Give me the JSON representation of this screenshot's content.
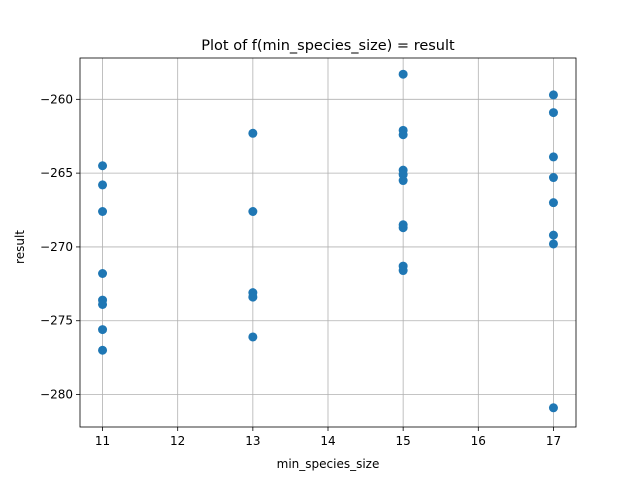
{
  "chart_data": {
    "type": "scatter",
    "title": "Plot of f(min_species_size) = result",
    "xlabel": "min_species_size",
    "ylabel": "result",
    "xlim": [
      10.7,
      17.3
    ],
    "ylim": [
      -282.2,
      -257.2
    ],
    "xticks": [
      11,
      12,
      13,
      14,
      15,
      16,
      17
    ],
    "yticks": [
      -260,
      -265,
      -270,
      -275,
      -280
    ],
    "grid": true,
    "legend": "none",
    "marker_color": "#1f77b4",
    "series": [
      {
        "points": [
          {
            "x": 11,
            "y": -264.5
          },
          {
            "x": 11,
            "y": -265.8
          },
          {
            "x": 11,
            "y": -267.6
          },
          {
            "x": 11,
            "y": -271.8
          },
          {
            "x": 11,
            "y": -273.6
          },
          {
            "x": 11,
            "y": -273.9
          },
          {
            "x": 11,
            "y": -275.6
          },
          {
            "x": 11,
            "y": -277.0
          },
          {
            "x": 13,
            "y": -262.3
          },
          {
            "x": 13,
            "y": -267.6
          },
          {
            "x": 13,
            "y": -273.1
          },
          {
            "x": 13,
            "y": -273.4
          },
          {
            "x": 13,
            "y": -276.1
          },
          {
            "x": 15,
            "y": -258.3
          },
          {
            "x": 15,
            "y": -262.1
          },
          {
            "x": 15,
            "y": -262.4
          },
          {
            "x": 15,
            "y": -264.8
          },
          {
            "x": 15,
            "y": -265.1
          },
          {
            "x": 15,
            "y": -265.5
          },
          {
            "x": 15,
            "y": -268.5
          },
          {
            "x": 15,
            "y": -268.7
          },
          {
            "x": 15,
            "y": -271.3
          },
          {
            "x": 15,
            "y": -271.6
          },
          {
            "x": 17,
            "y": -259.7
          },
          {
            "x": 17,
            "y": -260.9
          },
          {
            "x": 17,
            "y": -263.9
          },
          {
            "x": 17,
            "y": -265.3
          },
          {
            "x": 17,
            "y": -267.0
          },
          {
            "x": 17,
            "y": -269.2
          },
          {
            "x": 17,
            "y": -269.8
          },
          {
            "x": 17,
            "y": -280.9
          }
        ]
      }
    ]
  }
}
